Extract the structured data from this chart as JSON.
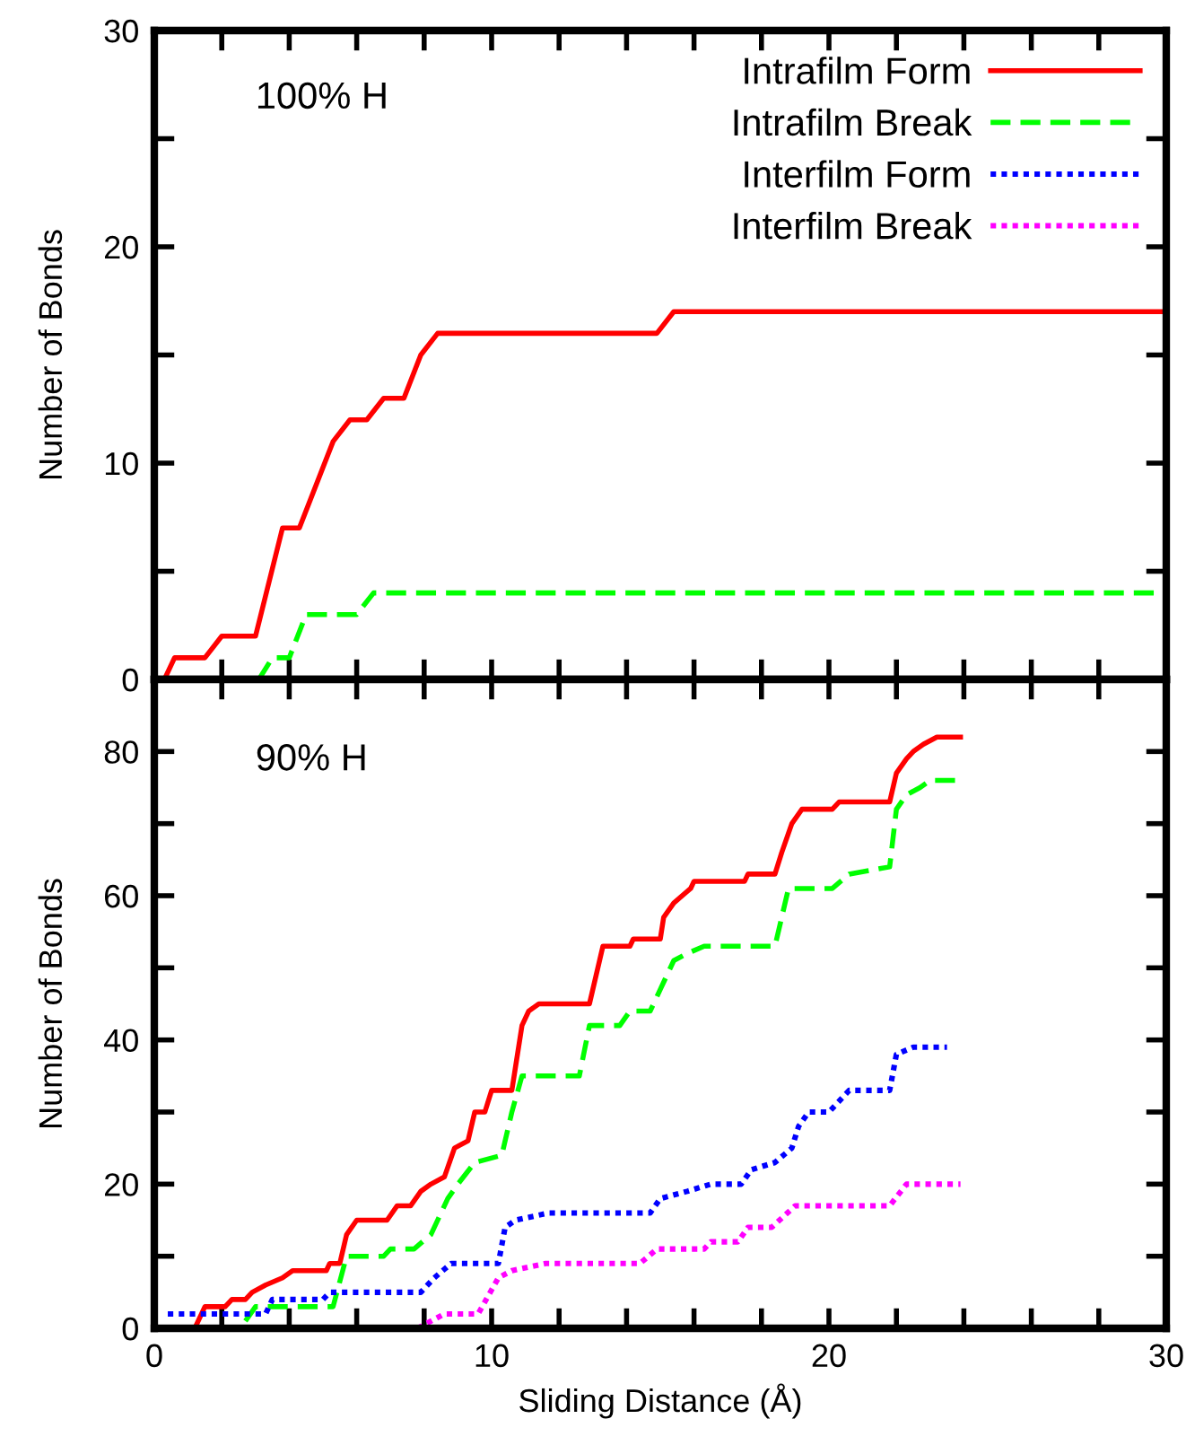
{
  "chart_data": [
    {
      "type": "line",
      "ylabel": "Number of Bonds",
      "annotations": [
        "100% H"
      ],
      "xlim": [
        0,
        30
      ],
      "ylim": [
        0,
        30
      ],
      "xticks": [
        0,
        {
          "value": 2,
          "label": null
        },
        {
          "value": 4,
          "label": null
        },
        {
          "value": 6,
          "label": null
        },
        {
          "value": 8,
          "label": null
        },
        10,
        {
          "value": 12,
          "label": null
        },
        {
          "value": 14,
          "label": null
        },
        {
          "value": 16,
          "label": null
        },
        {
          "value": 18,
          "label": null
        },
        20,
        {
          "value": 22,
          "label": null
        },
        {
          "value": 24,
          "label": null
        },
        {
          "value": 26,
          "label": null
        },
        {
          "value": 28,
          "label": null
        },
        30
      ],
      "yticks": [
        0,
        {
          "value": 5,
          "label": null
        },
        10,
        {
          "value": 15,
          "label": null
        },
        20,
        {
          "value": 25,
          "label": null
        },
        30
      ],
      "tick_labels": "y",
      "grid": false,
      "series": [
        {
          "color": "#ff0000",
          "line_style": "solid",
          "x": [
            0.3,
            0.6,
            1.5,
            2.0,
            3.0,
            3.8,
            4.3,
            5.3,
            5.8,
            6.3,
            6.8,
            7.4,
            7.9,
            8.4,
            14.9,
            15.4,
            30
          ],
          "values": [
            0,
            1,
            1,
            2,
            2,
            7,
            7,
            11,
            12,
            12,
            13,
            13,
            15,
            16,
            16,
            17,
            17
          ]
        },
        {
          "color": "#00ff00",
          "line_style": "dashed",
          "x": [
            3.1,
            3.5,
            4.0,
            4.5,
            6.0,
            6.5,
            30
          ],
          "values": [
            0,
            1,
            1,
            3,
            3,
            4,
            4
          ]
        }
      ]
    },
    {
      "type": "line",
      "xlabel": "Sliding Distance (Å)",
      "ylabel": "Number of Bonds",
      "annotations": [
        "90% H"
      ],
      "xlim": [
        0,
        30
      ],
      "ylim": [
        0,
        90
      ],
      "xticks": [
        0,
        {
          "value": 2,
          "label": null
        },
        {
          "value": 4,
          "label": null
        },
        {
          "value": 6,
          "label": null
        },
        {
          "value": 8,
          "label": null
        },
        10,
        {
          "value": 12,
          "label": null
        },
        {
          "value": 14,
          "label": null
        },
        {
          "value": 16,
          "label": null
        },
        {
          "value": 18,
          "label": null
        },
        20,
        {
          "value": 22,
          "label": null
        },
        {
          "value": 24,
          "label": null
        },
        {
          "value": 26,
          "label": null
        },
        {
          "value": 28,
          "label": null
        },
        30
      ],
      "yticks": [
        0,
        {
          "value": 10,
          "label": null
        },
        20,
        {
          "value": 30,
          "label": null
        },
        40,
        {
          "value": 50,
          "label": null
        },
        60,
        {
          "value": 70,
          "label": null
        },
        80
      ],
      "grid": false,
      "legend": "top right",
      "series": [
        {
          "name": "Intrafilm Form",
          "color": "#ff0000",
          "line_style": "solid",
          "x": [
            1.2,
            1.5,
            2.1,
            2.3,
            2.7,
            2.9,
            3.3,
            3.8,
            4.1,
            5.1,
            5.2,
            5.5,
            5.7,
            6.0,
            6.9,
            7.2,
            7.6,
            7.9,
            8.2,
            8.6,
            8.9,
            9.3,
            9.5,
            9.8,
            10.0,
            10.6,
            10.7,
            10.9,
            11.1,
            11.4,
            12.9,
            13.3,
            14.1,
            14.2,
            15.0,
            15.1,
            15.4,
            15.9,
            16.0,
            17.5,
            17.6,
            18.4,
            18.6,
            18.9,
            19.2,
            20.1,
            20.3,
            21.8,
            22.0,
            22.3,
            22.5,
            22.8,
            23.2,
            23.9
          ],
          "values": [
            0,
            3,
            3,
            4,
            4,
            5,
            6,
            7,
            8,
            8,
            9,
            9,
            13,
            15,
            15,
            17,
            17,
            19,
            20,
            21,
            25,
            26,
            30,
            30,
            33,
            33,
            36,
            42,
            44,
            45,
            45,
            53,
            53,
            54,
            54,
            57,
            59,
            61,
            62,
            62,
            63,
            63,
            66,
            70,
            72,
            72,
            73,
            73,
            77,
            79,
            80,
            81,
            82,
            82
          ]
        },
        {
          "name": "Intrafilm Break",
          "color": "#00ff00",
          "line_style": "dashed",
          "x": [
            2.7,
            3.0,
            5.3,
            5.7,
            6.8,
            7.0,
            7.7,
            8.2,
            8.7,
            9.0,
            9.5,
            10.3,
            10.6,
            10.9,
            12.6,
            12.9,
            13.8,
            14.1,
            14.7,
            15.0,
            15.4,
            15.8,
            16.3,
            18.4,
            18.6,
            18.8,
            20.1,
            20.6,
            21.8,
            22.0,
            22.3,
            22.7,
            23.0,
            23.9
          ],
          "values": [
            1,
            3,
            3,
            10,
            10,
            11,
            11,
            13,
            18,
            20,
            23,
            24,
            30,
            35,
            35,
            42,
            42,
            44,
            44,
            47,
            51,
            52,
            53,
            53,
            57,
            61,
            61,
            63,
            64,
            72,
            74,
            75,
            76,
            76
          ]
        },
        {
          "name": "Interfilm Form",
          "color": "#0000ff",
          "line_style": "dotted",
          "x": [
            0.4,
            3.3,
            3.5,
            5.0,
            5.2,
            7.9,
            8.3,
            8.8,
            10.2,
            10.4,
            10.7,
            11.7,
            14.7,
            15.0,
            15.8,
            16.5,
            17.4,
            17.7,
            18.4,
            18.9,
            19.1,
            19.4,
            20.0,
            20.6,
            21.8,
            22.0,
            22.5,
            23.5
          ],
          "values": [
            2,
            2,
            4,
            4,
            5,
            5,
            7,
            9,
            9,
            14,
            15,
            16,
            16,
            18,
            19,
            20,
            20,
            22,
            23,
            25,
            28,
            30,
            30,
            33,
            33,
            38,
            39,
            39
          ]
        },
        {
          "name": "Interfilm Break",
          "color": "#ff00ff",
          "line_style": "dotted",
          "x": [
            7.8,
            8.6,
            9.6,
            10.2,
            10.6,
            11.6,
            14.4,
            14.9,
            16.3,
            16.5,
            17.3,
            17.6,
            18.3,
            19.0,
            20.0,
            21.8,
            22.3,
            23.9
          ],
          "values": [
            0,
            2,
            2,
            7,
            8,
            9,
            9,
            11,
            11,
            12,
            12,
            14,
            14,
            17,
            17,
            17,
            20,
            20
          ]
        }
      ]
    }
  ]
}
